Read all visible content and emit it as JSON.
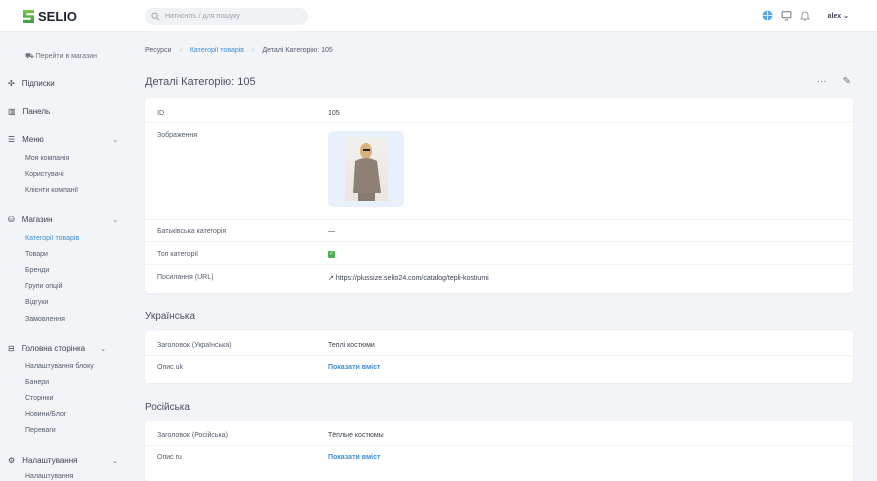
{
  "header": {
    "brand": "SELIO",
    "search_placeholder": "Натисніть / для пошуку",
    "user": "alex"
  },
  "sidebar": {
    "goto_store": "Перейти в магазин",
    "subscriptions": "Підписки",
    "dashboard": "Панель",
    "menu": {
      "label": "Меню",
      "items": [
        "Моя компанія",
        "Користувачі",
        "Клієнти компанії"
      ]
    },
    "store": {
      "label": "Магазин",
      "items": [
        "Категорії товарів",
        "Товари",
        "Бренди",
        "Групи опцій",
        "Відгуки",
        "Замовлення"
      ]
    },
    "home": {
      "label": "Головна сторінка",
      "items": [
        "Налаштування блоку",
        "Банери",
        "Сторінки",
        "Новини/Блог",
        "Переваги"
      ]
    },
    "settings": {
      "label": "Налаштування",
      "items": [
        "Налаштування"
      ]
    }
  },
  "breadcrumb": [
    "Ресурси",
    "Категорії товарів",
    "Деталі Категорію: 105"
  ],
  "page_title": "Деталі Категорію: 105",
  "details": {
    "id_label": "ID",
    "id_value": "105",
    "image_label": "Зображення",
    "parent_label": "Батьківська категорія",
    "parent_value": "—",
    "top_label": "Топ категорії",
    "top_value": true,
    "url_label": "Посилання (URL)",
    "url_value": "https://plussize.selio24.com/catalog/tepli-kostiumi"
  },
  "ukrainian": {
    "section": "Українська",
    "title_label": "Заголовок (Українська)",
    "title_value": "Теплі костюми",
    "desc_label": "Опис uk",
    "show_more": "Показати вміст"
  },
  "russian": {
    "section": "Російська",
    "title_label": "Заголовок (Російська)",
    "title_value": "Тёплые костюмы",
    "desc_label": "Опис ru",
    "show_more": "Показати вміст"
  },
  "colors": {
    "accent": "#3d8fd6",
    "brand_green": "#4caf50",
    "background": "#f2f4f8"
  }
}
